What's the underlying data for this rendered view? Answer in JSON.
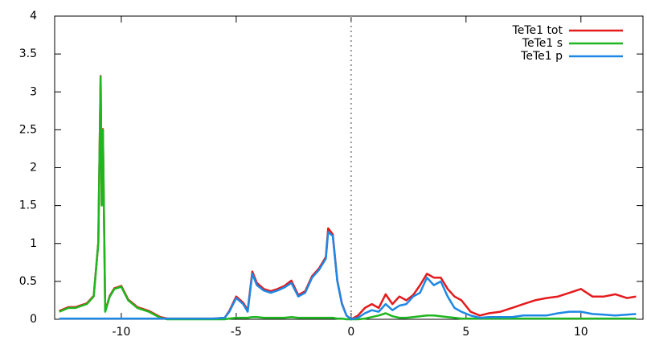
{
  "chart_data": {
    "type": "line",
    "x": [
      -12.7,
      -12.3,
      -12,
      -11.5,
      -11.2,
      -11,
      -10.9,
      -10.85,
      -10.8,
      -10.7,
      -10.5,
      -10.3,
      -10,
      -9.7,
      -9.3,
      -8.8,
      -8.3,
      -8,
      -6,
      -5.5,
      -5.3,
      -5,
      -4.7,
      -4.5,
      -4.3,
      -4.1,
      -3.8,
      -3.5,
      -3.2,
      -2.9,
      -2.6,
      -2.3,
      -2,
      -1.7,
      -1.4,
      -1.1,
      -1,
      -0.8,
      -0.6,
      -0.4,
      -0.2,
      0,
      0.3,
      0.6,
      0.9,
      1.2,
      1.5,
      1.8,
      2.1,
      2.4,
      2.7,
      3,
      3.3,
      3.6,
      3.9,
      4.2,
      4.5,
      4.8,
      5.2,
      5.6,
      6,
      6.5,
      7,
      7.5,
      8,
      8.5,
      9,
      9.5,
      10,
      10.5,
      11,
      11.5,
      12,
      12.4
    ],
    "series": [
      {
        "name": "TeTe1 tot",
        "color": "#e41a1c",
        "values": [
          0.11,
          0.16,
          0.16,
          0.21,
          0.31,
          1.01,
          3.21,
          1.51,
          2.51,
          0.11,
          0.31,
          0.41,
          0.44,
          0.26,
          0.16,
          0.11,
          0.03,
          0.01,
          0.01,
          0.02,
          0.11,
          0.3,
          0.22,
          0.12,
          0.63,
          0.48,
          0.4,
          0.37,
          0.4,
          0.44,
          0.51,
          0.32,
          0.37,
          0.57,
          0.67,
          0.82,
          1.2,
          1.12,
          0.51,
          0.21,
          0.05,
          0,
          0.05,
          0.15,
          0.2,
          0.15,
          0.33,
          0.2,
          0.3,
          0.25,
          0.32,
          0.45,
          0.6,
          0.55,
          0.55,
          0.4,
          0.3,
          0.25,
          0.1,
          0.05,
          0.08,
          0.1,
          0.15,
          0.2,
          0.25,
          0.28,
          0.3,
          0.35,
          0.4,
          0.3,
          0.3,
          0.33,
          0.28,
          0.3
        ]
      },
      {
        "name": "TeTe1 s",
        "color": "#1fb71f",
        "values": [
          0.1,
          0.15,
          0.15,
          0.2,
          0.3,
          1.0,
          3.2,
          1.5,
          2.5,
          0.1,
          0.3,
          0.4,
          0.43,
          0.25,
          0.15,
          0.1,
          0.02,
          0,
          0,
          0,
          0.01,
          0.02,
          0.02,
          0.02,
          0.03,
          0.03,
          0.02,
          0.02,
          0.02,
          0.02,
          0.03,
          0.02,
          0.02,
          0.02,
          0.02,
          0.02,
          0.02,
          0.02,
          0.01,
          0.01,
          0,
          0,
          0,
          0.01,
          0.03,
          0.05,
          0.08,
          0.04,
          0.02,
          0.02,
          0.03,
          0.04,
          0.05,
          0.05,
          0.04,
          0.03,
          0.02,
          0.01,
          0.01,
          0.01,
          0.01,
          0.01,
          0.01,
          0.01,
          0.01,
          0.01,
          0.01,
          0.01,
          0.01,
          0.01,
          0.01,
          0.01,
          0.01,
          0.01
        ]
      },
      {
        "name": "TeTe1 p",
        "color": "#1e88e5",
        "values": [
          0.01,
          0.01,
          0.01,
          0.01,
          0.01,
          0.01,
          0.01,
          0.01,
          0.01,
          0.01,
          0.01,
          0.01,
          0.01,
          0.01,
          0.01,
          0.01,
          0.01,
          0.01,
          0.01,
          0.02,
          0.1,
          0.28,
          0.2,
          0.1,
          0.6,
          0.45,
          0.38,
          0.35,
          0.38,
          0.42,
          0.48,
          0.3,
          0.35,
          0.55,
          0.65,
          0.8,
          1.15,
          1.1,
          0.5,
          0.2,
          0.05,
          0,
          0.02,
          0.08,
          0.12,
          0.1,
          0.2,
          0.12,
          0.18,
          0.2,
          0.3,
          0.35,
          0.55,
          0.45,
          0.5,
          0.3,
          0.15,
          0.1,
          0.05,
          0.02,
          0.03,
          0.03,
          0.03,
          0.05,
          0.05,
          0.05,
          0.08,
          0.1,
          0.1,
          0.07,
          0.06,
          0.05,
          0.06,
          0.07
        ]
      }
    ],
    "xlim": [
      -12.9,
      12.7
    ],
    "xticks": [
      -10,
      -5,
      0,
      5,
      10
    ],
    "ylim": [
      0,
      4
    ],
    "yticks": [
      0,
      0.5,
      1,
      1.5,
      2,
      2.5,
      3,
      3.5,
      4
    ],
    "vline": 0,
    "legend": "top-right"
  }
}
